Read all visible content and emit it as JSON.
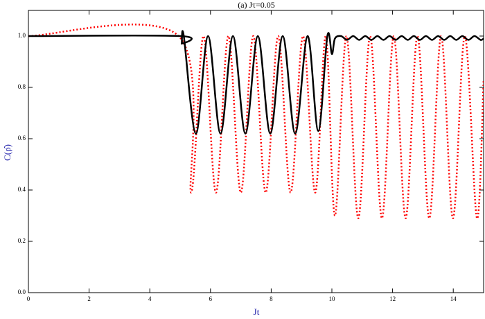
{
  "chart_data": {
    "type": "line",
    "title": "(a) Jτ=0.05",
    "xlabel": "Jt",
    "ylabel": "C(ρ̂)",
    "xlim": [
      0,
      15
    ],
    "ylim": [
      0,
      1.1
    ],
    "xticks": [
      0,
      2,
      4,
      6,
      8,
      10,
      12,
      14
    ],
    "yticks": [
      {
        "value": 0,
        "label": "0.0"
      },
      0.2,
      0.4,
      0.6,
      0.8,
      {
        "value": 1,
        "label": "1.0"
      }
    ],
    "series": [
      {
        "color": "#ff0000",
        "dash": true,
        "width": 2.5,
        "x": [
          0,
          4.95,
          5.36,
          5.77,
          6.18,
          6.59,
          7.0,
          7.41,
          7.82,
          8.23,
          8.64,
          9.05,
          9.45,
          9.8,
          10.1,
          10.48,
          10.87,
          11.26,
          11.65,
          12.04,
          12.43,
          12.82,
          13.21,
          13.6,
          13.99,
          14.38,
          14.78,
          15
        ],
        "values": [
          1,
          1,
          0.39,
          1,
          0.39,
          1,
          0.39,
          1,
          0.39,
          1,
          0.39,
          1,
          0.39,
          1,
          0.3,
          1,
          0.29,
          1,
          0.29,
          1,
          0.29,
          1,
          0.29,
          1,
          0.29,
          1,
          0.29,
          0.83
        ]
      },
      {
        "color": "#000000",
        "dash": false,
        "width": 2.5,
        "x": [
          0,
          5.0,
          5.05,
          5.12,
          5.52,
          5.92,
          6.33,
          6.74,
          7.15,
          7.56,
          7.97,
          8.38,
          8.79,
          9.2,
          9.55,
          9.85,
          10.0,
          10.1,
          10.3,
          10.5,
          10.7,
          10.9,
          11.1,
          11.3,
          11.5,
          11.7,
          11.9,
          12.1,
          12.3,
          12.5,
          12.7,
          12.9,
          13.1,
          13.3,
          13.5,
          13.7,
          13.9,
          14.1,
          14.3,
          14.5,
          14.7,
          14.9,
          15
        ],
        "values": [
          1,
          1,
          0.97,
          1,
          0.62,
          1,
          0.62,
          1,
          0.62,
          1,
          0.62,
          1,
          0.62,
          1,
          0.63,
          1,
          0.93,
          0.99,
          1,
          0.985,
          1,
          0.985,
          1,
          0.985,
          1,
          0.985,
          1,
          0.985,
          1,
          0.985,
          1,
          0.985,
          1,
          0.985,
          1,
          0.985,
          1,
          0.985,
          1,
          0.985,
          1,
          0.985,
          0.99
        ]
      }
    ]
  }
}
